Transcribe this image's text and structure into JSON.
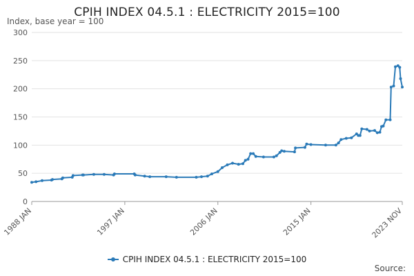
{
  "chart_data": {
    "type": "line",
    "title": "CPIH INDEX 04.5.1 : ELECTRICITY 2015=100",
    "ylabel": "Index, base year = 100",
    "xlabel": "",
    "ylim": [
      0,
      300
    ],
    "yticks": [
      0,
      50,
      100,
      150,
      200,
      250,
      300
    ],
    "xlim": [
      "1988-01",
      "2023-11"
    ],
    "xticks": [
      {
        "date": "1988-01",
        "label": "1988 JAN"
      },
      {
        "date": "1997-01",
        "label": "1997 JAN"
      },
      {
        "date": "2006-01",
        "label": "2006 JAN"
      },
      {
        "date": "2015-01",
        "label": "2015 JAN"
      },
      {
        "date": "2023-11",
        "label": "2023 NOV"
      }
    ],
    "grid": true,
    "legend_position": "bottom",
    "color": "#2a7ab8",
    "series": [
      {
        "name": "CPIH INDEX 04.5.1 : ELECTRICITY 2015=100",
        "points": [
          [
            "1988-01",
            34
          ],
          [
            "1988-06",
            35
          ],
          [
            "1989-01",
            37
          ],
          [
            "1989-12",
            38
          ],
          [
            "1990-01",
            39
          ],
          [
            "1990-12",
            40
          ],
          [
            "1991-01",
            42
          ],
          [
            "1991-12",
            43
          ],
          [
            "1992-01",
            46
          ],
          [
            "1992-12",
            47
          ],
          [
            "1993-01",
            47
          ],
          [
            "1994-01",
            48
          ],
          [
            "1995-01",
            48
          ],
          [
            "1995-12",
            47
          ],
          [
            "1996-01",
            49
          ],
          [
            "1997-12",
            49
          ],
          [
            "1998-01",
            47
          ],
          [
            "1998-12",
            45
          ],
          [
            "1999-06",
            44
          ],
          [
            "2001-01",
            44
          ],
          [
            "2002-01",
            43
          ],
          [
            "2003-12",
            43
          ],
          [
            "2004-06",
            44
          ],
          [
            "2005-01",
            45
          ],
          [
            "2005-06",
            49
          ],
          [
            "2006-01",
            53
          ],
          [
            "2006-06",
            60
          ],
          [
            "2006-12",
            65
          ],
          [
            "2007-06",
            68
          ],
          [
            "2008-01",
            66
          ],
          [
            "2008-06",
            67
          ],
          [
            "2008-09",
            73
          ],
          [
            "2008-12",
            75
          ],
          [
            "2009-03",
            85
          ],
          [
            "2009-06",
            85
          ],
          [
            "2009-09",
            80
          ],
          [
            "2010-06",
            79
          ],
          [
            "2011-06",
            79
          ],
          [
            "2011-09",
            81
          ],
          [
            "2012-01",
            87
          ],
          [
            "2012-03",
            90
          ],
          [
            "2012-06",
            89
          ],
          [
            "2013-06",
            88
          ],
          [
            "2013-07",
            95
          ],
          [
            "2014-06",
            96
          ],
          [
            "2014-08",
            102
          ],
          [
            "2015-01",
            101
          ],
          [
            "2016-06",
            100
          ],
          [
            "2017-06",
            100
          ],
          [
            "2017-09",
            104
          ],
          [
            "2017-12",
            110
          ],
          [
            "2018-06",
            112
          ],
          [
            "2018-12",
            113
          ],
          [
            "2019-06",
            120
          ],
          [
            "2019-08",
            117
          ],
          [
            "2019-10",
            117
          ],
          [
            "2019-12",
            129
          ],
          [
            "2020-06",
            128
          ],
          [
            "2020-09",
            125
          ],
          [
            "2021-03",
            126
          ],
          [
            "2021-06",
            122
          ],
          [
            "2021-09",
            123
          ],
          [
            "2021-11",
            133
          ],
          [
            "2022-01",
            134
          ],
          [
            "2022-04",
            145
          ],
          [
            "2022-09",
            145
          ],
          [
            "2022-10",
            203
          ],
          [
            "2023-01",
            205
          ],
          [
            "2023-03",
            239
          ],
          [
            "2023-06",
            241
          ],
          [
            "2023-08",
            238
          ],
          [
            "2023-09",
            218
          ],
          [
            "2023-11",
            203
          ]
        ]
      }
    ]
  },
  "footer": {
    "source_label": "Source:"
  }
}
